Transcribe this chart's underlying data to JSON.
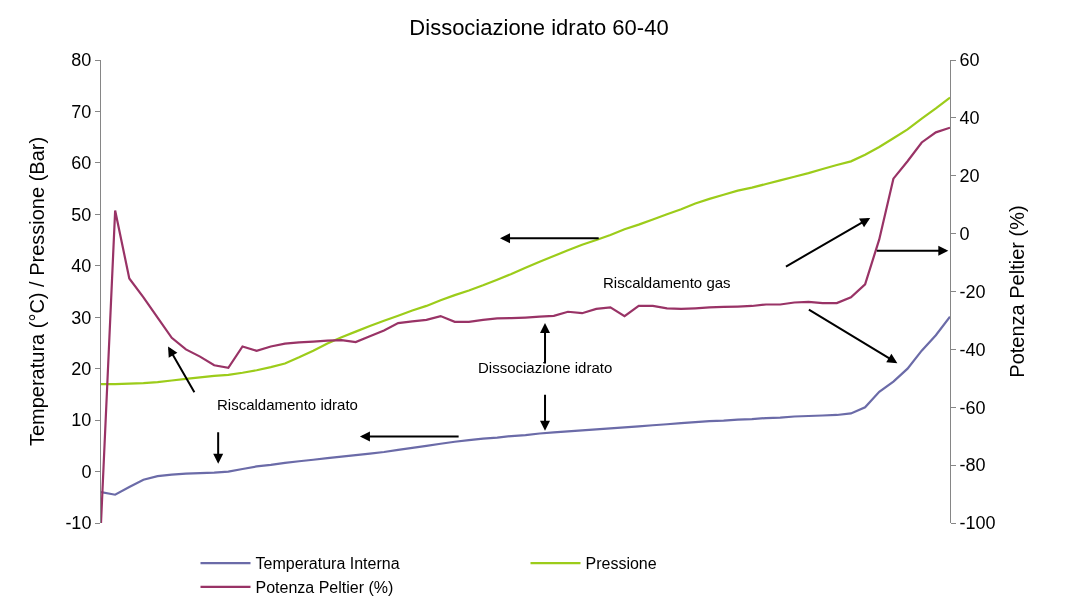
{
  "chart_data": {
    "type": "line",
    "title": "Dissociazione idrato 60-40",
    "ylabel": "Temperatura (°C) / Pressione (Bar)",
    "y2label": "Potenza Peltier (%)",
    "categories": [
      null,
      null,
      null,
      null,
      null,
      null,
      null,
      null,
      null,
      null,
      null,
      null,
      null,
      null,
      null,
      null,
      null,
      null,
      null,
      null,
      null,
      null,
      null,
      null,
      null,
      null,
      null,
      null,
      null,
      null,
      null,
      null,
      null,
      null,
      null,
      null,
      null,
      null,
      null,
      null,
      null,
      null,
      null,
      null,
      null,
      null,
      null,
      null,
      null,
      null,
      null,
      null,
      null,
      null,
      null,
      null,
      null,
      null,
      null,
      null,
      null
    ],
    "series": [
      {
        "name": "Temperatura Interna",
        "color": "#6b6ba8",
        "values": [
          -4.0,
          -4.5,
          -3.0,
          -1.6,
          -0.9,
          -0.6,
          -0.4,
          -0.3,
          -0.2,
          0.0,
          0.5,
          1.0,
          1.3,
          1.7,
          2.0,
          2.3,
          2.6,
          2.9,
          3.2,
          3.5,
          3.8,
          4.2,
          4.6,
          5.0,
          5.4,
          5.8,
          6.1,
          6.4,
          6.6,
          6.9,
          7.1,
          7.4,
          7.6,
          7.8,
          8.0,
          8.2,
          8.4,
          8.6,
          8.8,
          9.0,
          9.2,
          9.4,
          9.6,
          9.8,
          9.9,
          10.1,
          10.2,
          10.4,
          10.5,
          10.7,
          10.8,
          10.9,
          11.0,
          11.3,
          12.5,
          15.5,
          17.5,
          20.0,
          23.5,
          26.5,
          30.1
        ]
      },
      {
        "name": "Pressione",
        "color": "#9ccc1a",
        "values": [
          17.0,
          17.0,
          17.1,
          17.2,
          17.4,
          17.7,
          18.0,
          18.3,
          18.6,
          18.8,
          19.2,
          19.7,
          20.3,
          21.0,
          22.2,
          23.5,
          24.9,
          26.1,
          27.2,
          28.3,
          29.3,
          30.3,
          31.3,
          32.2,
          33.3,
          34.3,
          35.2,
          36.2,
          37.3,
          38.4,
          39.6,
          40.8,
          41.9,
          43.0,
          44.1,
          45.0,
          46.0,
          47.1,
          48.0,
          49.0,
          50.0,
          51.0,
          52.1,
          53.0,
          53.8,
          54.6,
          55.2,
          55.9,
          56.6,
          57.3,
          58.0,
          58.8,
          59.6,
          60.3,
          61.6,
          63.1,
          64.8,
          66.5,
          68.6,
          70.6,
          72.7
        ]
      },
      {
        "name": "Potenza Peltier (%)",
        "color": "#993366",
        "axis": "y2",
        "values": [
          -100,
          8,
          -15.5,
          -22,
          -29,
          -36,
          -40,
          -42.5,
          -45.5,
          -46.4,
          -39,
          -40.5,
          -39,
          -38,
          -37.6,
          -37.3,
          -37,
          -36.8,
          -37.5,
          -35.5,
          -33.5,
          -30.9,
          -30.3,
          -29.8,
          -28.5,
          -30.5,
          -30.5,
          -29.8,
          -29.3,
          -29.2,
          -29,
          -28.7,
          -28.4,
          -27,
          -27.5,
          -26,
          -25.5,
          -28.5,
          -25,
          -25,
          -25.8,
          -26,
          -25.8,
          -25.5,
          -25.3,
          -25.2,
          -25,
          -24.5,
          -24.5,
          -23.8,
          -23.6,
          -24,
          -24,
          -22,
          -17.5,
          -2,
          19,
          25,
          31.5,
          35,
          36.6
        ]
      }
    ],
    "ylim": [
      -10,
      80
    ],
    "yticks": [
      -10,
      0,
      10,
      20,
      30,
      40,
      50,
      60,
      70,
      80
    ],
    "y2lim": [
      -100,
      60
    ],
    "y2ticks": [
      -100,
      -80,
      -60,
      -40,
      -20,
      0,
      20,
      40,
      60
    ],
    "annotations": [
      "Riscaldamento idrato",
      "Dissociazione idrato",
      "Riscaldamento gas"
    ],
    "legend": "bottom",
    "marker": "none",
    "line_style": "solid"
  }
}
